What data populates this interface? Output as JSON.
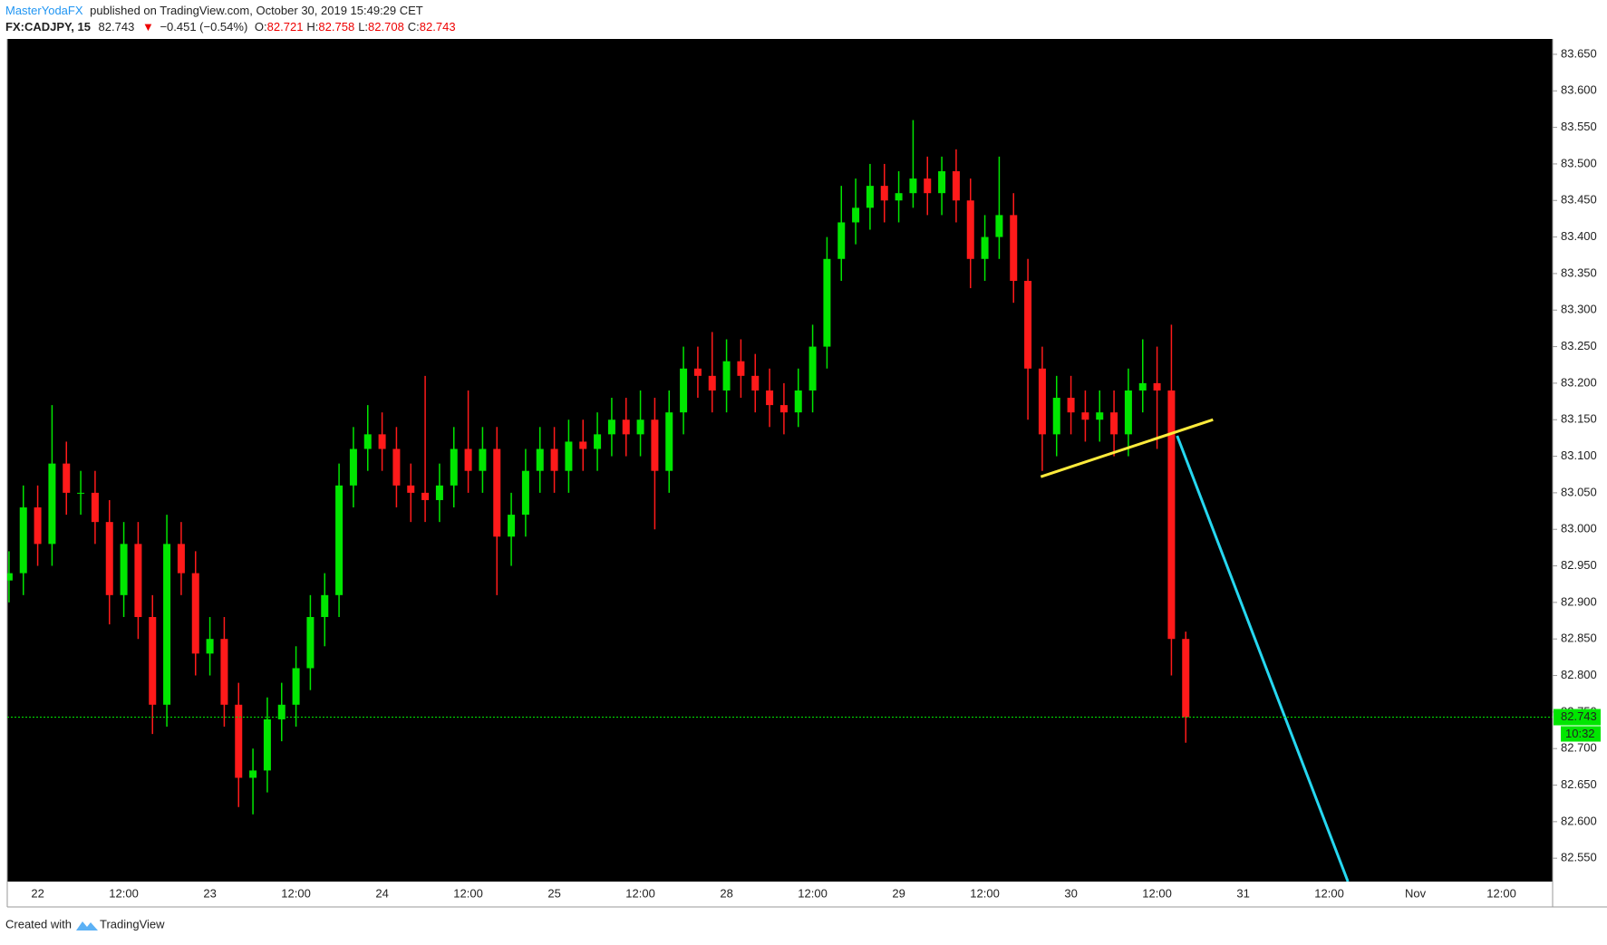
{
  "header": {
    "publisher": "MasterYodaFX",
    "published": "published on TradingView.com, October 30, 2019 15:49:29 CET",
    "symbol": "FX:CADJPY, 15",
    "last": 82.743,
    "change": "−0.451 (−0.54%)",
    "ohlc": [
      {
        "label": "O:",
        "value": 82.721
      },
      {
        "label": "H:",
        "value": 82.758
      },
      {
        "label": "L:",
        "value": 82.708
      },
      {
        "label": "C:",
        "value": 82.743
      }
    ]
  },
  "footer": {
    "text": "Created with",
    "brand": "TradingView"
  },
  "chart_data": {
    "type": "candlestick",
    "up_color": "#00e600",
    "down_color": "#ff1a1a",
    "background": "#000000",
    "categories": [
      null,
      null,
      "22",
      null,
      null,
      null,
      null,
      null,
      "12:00",
      null,
      null,
      null,
      null,
      null,
      "23",
      null,
      null,
      null,
      null,
      null,
      "12:00",
      null,
      null,
      null,
      null,
      null,
      "24",
      null,
      null,
      null,
      null,
      null,
      "12:00",
      null,
      null,
      null,
      null,
      null,
      "25",
      null,
      null,
      null,
      null,
      null,
      "12:00",
      null,
      null,
      null,
      null,
      null,
      "28",
      null,
      null,
      null,
      null,
      null,
      "12:00",
      null,
      null,
      null,
      null,
      null,
      "29",
      null,
      null,
      null,
      null,
      null,
      "12:00",
      null,
      null,
      null,
      null,
      null,
      "30",
      null,
      null,
      null,
      null,
      null,
      "12:00",
      null,
      null,
      null,
      null,
      null,
      "31",
      null,
      null,
      null,
      null,
      null,
      "12:00",
      null,
      null,
      null,
      null,
      null,
      "Nov",
      null,
      null,
      null,
      null,
      null,
      "12:00",
      null,
      null,
      null
    ],
    "open": [
      82.93,
      82.94,
      83.03,
      82.98,
      83.09,
      83.05,
      83.05,
      83.01,
      82.91,
      82.98,
      82.88,
      82.76,
      82.98,
      82.94,
      82.83,
      82.85,
      82.76,
      82.66,
      82.67,
      82.74,
      82.76,
      82.81,
      82.88,
      82.91,
      83.06,
      83.11,
      83.13,
      83.11,
      83.06,
      83.05,
      83.04,
      83.06,
      83.11,
      83.08,
      83.11,
      82.99,
      83.02,
      83.08,
      83.11,
      83.08,
      83.12,
      83.11,
      83.13,
      83.15,
      83.13,
      83.15,
      83.08,
      83.16,
      83.22,
      83.21,
      83.19,
      83.23,
      83.21,
      83.19,
      83.17,
      83.16,
      83.19,
      83.25,
      83.37,
      83.42,
      83.44,
      83.47,
      83.45,
      83.46,
      83.48,
      83.46,
      83.49,
      83.45,
      83.37,
      83.4,
      83.43,
      83.34,
      83.22,
      83.13,
      83.18,
      83.16,
      83.15,
      83.16,
      83.13,
      83.19,
      83.2,
      83.19,
      82.85,
      null,
      null,
      null,
      null,
      null,
      null,
      null,
      null,
      null,
      null,
      null,
      null,
      null,
      null,
      null,
      null,
      null,
      null,
      null,
      null,
      null,
      null,
      null,
      null,
      null
    ],
    "high": [
      82.97,
      83.06,
      83.06,
      83.17,
      83.12,
      83.08,
      83.08,
      83.04,
      83.01,
      83.01,
      82.91,
      83.02,
      83.01,
      82.97,
      82.88,
      82.88,
      82.79,
      82.7,
      82.77,
      82.79,
      82.84,
      82.91,
      82.94,
      83.09,
      83.14,
      83.17,
      83.16,
      83.14,
      83.09,
      83.21,
      83.09,
      83.14,
      83.19,
      83.14,
      83.14,
      83.05,
      83.11,
      83.14,
      83.14,
      83.15,
      83.15,
      83.16,
      83.18,
      83.18,
      83.19,
      83.18,
      83.19,
      83.25,
      83.25,
      83.27,
      83.26,
      83.26,
      83.24,
      83.22,
      83.2,
      83.22,
      83.28,
      83.4,
      83.47,
      83.48,
      83.5,
      83.5,
      83.49,
      83.56,
      83.51,
      83.51,
      83.52,
      83.48,
      83.43,
      83.51,
      83.46,
      83.37,
      83.25,
      83.21,
      83.21,
      83.19,
      83.19,
      83.19,
      83.22,
      83.26,
      83.25,
      83.28,
      82.86,
      null,
      null,
      null,
      null,
      null,
      null,
      null,
      null,
      null,
      null,
      null,
      null,
      null,
      null,
      null,
      null,
      null,
      null,
      null,
      null,
      null,
      null,
      null,
      null,
      null
    ],
    "low": [
      82.9,
      82.91,
      82.95,
      82.95,
      83.02,
      83.02,
      82.98,
      82.87,
      82.88,
      82.85,
      82.72,
      82.73,
      82.91,
      82.8,
      82.8,
      82.73,
      82.62,
      82.61,
      82.64,
      82.71,
      82.73,
      82.78,
      82.84,
      82.88,
      83.03,
      83.08,
      83.08,
      83.03,
      83.01,
      83.01,
      83.01,
      83.03,
      83.05,
      83.05,
      82.91,
      82.95,
      82.99,
      83.05,
      83.05,
      83.05,
      83.08,
      83.08,
      83.1,
      83.1,
      83.1,
      83.0,
      83.05,
      83.13,
      83.18,
      83.16,
      83.16,
      83.18,
      83.16,
      83.14,
      83.13,
      83.14,
      83.16,
      83.22,
      83.34,
      83.39,
      83.41,
      83.42,
      83.42,
      83.44,
      83.43,
      83.43,
      83.42,
      83.33,
      83.34,
      83.37,
      83.31,
      83.15,
      83.08,
      83.1,
      83.13,
      83.12,
      83.12,
      83.1,
      83.1,
      83.16,
      83.11,
      82.8,
      82.708,
      null,
      null,
      null,
      null,
      null,
      null,
      null,
      null,
      null,
      null,
      null,
      null,
      null,
      null,
      null,
      null,
      null,
      null,
      null,
      null,
      null,
      null,
      null,
      null,
      null
    ],
    "close": [
      82.94,
      83.03,
      82.98,
      83.09,
      83.05,
      83.05,
      83.01,
      82.91,
      82.98,
      82.88,
      82.76,
      82.98,
      82.94,
      82.83,
      82.85,
      82.76,
      82.66,
      82.67,
      82.74,
      82.76,
      82.81,
      82.88,
      82.91,
      83.06,
      83.11,
      83.13,
      83.11,
      83.06,
      83.05,
      83.04,
      83.06,
      83.11,
      83.08,
      83.11,
      82.99,
      83.02,
      83.08,
      83.11,
      83.08,
      83.12,
      83.11,
      83.13,
      83.15,
      83.13,
      83.15,
      83.08,
      83.16,
      83.22,
      83.21,
      83.19,
      83.23,
      83.21,
      83.19,
      83.17,
      83.16,
      83.19,
      83.25,
      83.37,
      83.42,
      83.44,
      83.47,
      83.45,
      83.46,
      83.48,
      83.46,
      83.49,
      83.45,
      83.37,
      83.4,
      83.43,
      83.34,
      83.22,
      83.13,
      83.18,
      83.16,
      83.15,
      83.16,
      83.13,
      83.19,
      83.2,
      83.19,
      82.85,
      82.743,
      null,
      null,
      null,
      null,
      null,
      null,
      null,
      null,
      null,
      null,
      null,
      null,
      null,
      null,
      null,
      null,
      null,
      null,
      null,
      null,
      null,
      null,
      null,
      null,
      null
    ],
    "last_price": {
      "value": 82.743,
      "label": "82.743",
      "countdown": "10:32",
      "color": "#00e600"
    },
    "trendlines": [
      {
        "color": "#ffeb3b",
        "x": [
          71.9,
          83.9
        ],
        "y": [
          83.072,
          83.15
        ]
      },
      {
        "color": "#26d7f0",
        "x": [
          81.4,
          93.3
        ],
        "y": [
          83.128,
          82.518
        ]
      }
    ],
    "ylim": [
      82.518,
      83.671
    ],
    "yticks": [
      {
        "value": 82.55,
        "label": "82.550"
      },
      {
        "value": 82.6,
        "label": "82.600"
      },
      {
        "value": 82.65,
        "label": "82.650"
      },
      {
        "value": 82.7,
        "label": "82.700"
      },
      {
        "value": 82.75,
        "label": "82.750"
      },
      {
        "value": 82.8,
        "label": "82.800"
      },
      {
        "value": 82.85,
        "label": "82.850"
      },
      {
        "value": 82.9,
        "label": "82.900"
      },
      {
        "value": 82.95,
        "label": "82.950"
      },
      {
        "value": 83,
        "label": "83.000"
      },
      {
        "value": 83.05,
        "label": "83.050"
      },
      {
        "value": 83.1,
        "label": "83.100"
      },
      {
        "value": 83.15,
        "label": "83.150"
      },
      {
        "value": 83.2,
        "label": "83.200"
      },
      {
        "value": 83.25,
        "label": "83.250"
      },
      {
        "value": 83.3,
        "label": "83.300"
      },
      {
        "value": 83.35,
        "label": "83.350"
      },
      {
        "value": 83.4,
        "label": "83.400"
      },
      {
        "value": 83.45,
        "label": "83.450"
      },
      {
        "value": 83.5,
        "label": "83.500"
      },
      {
        "value": 83.55,
        "label": "83.550"
      },
      {
        "value": 83.6,
        "label": "83.600"
      },
      {
        "value": 83.65,
        "label": "83.650"
      }
    ]
  }
}
